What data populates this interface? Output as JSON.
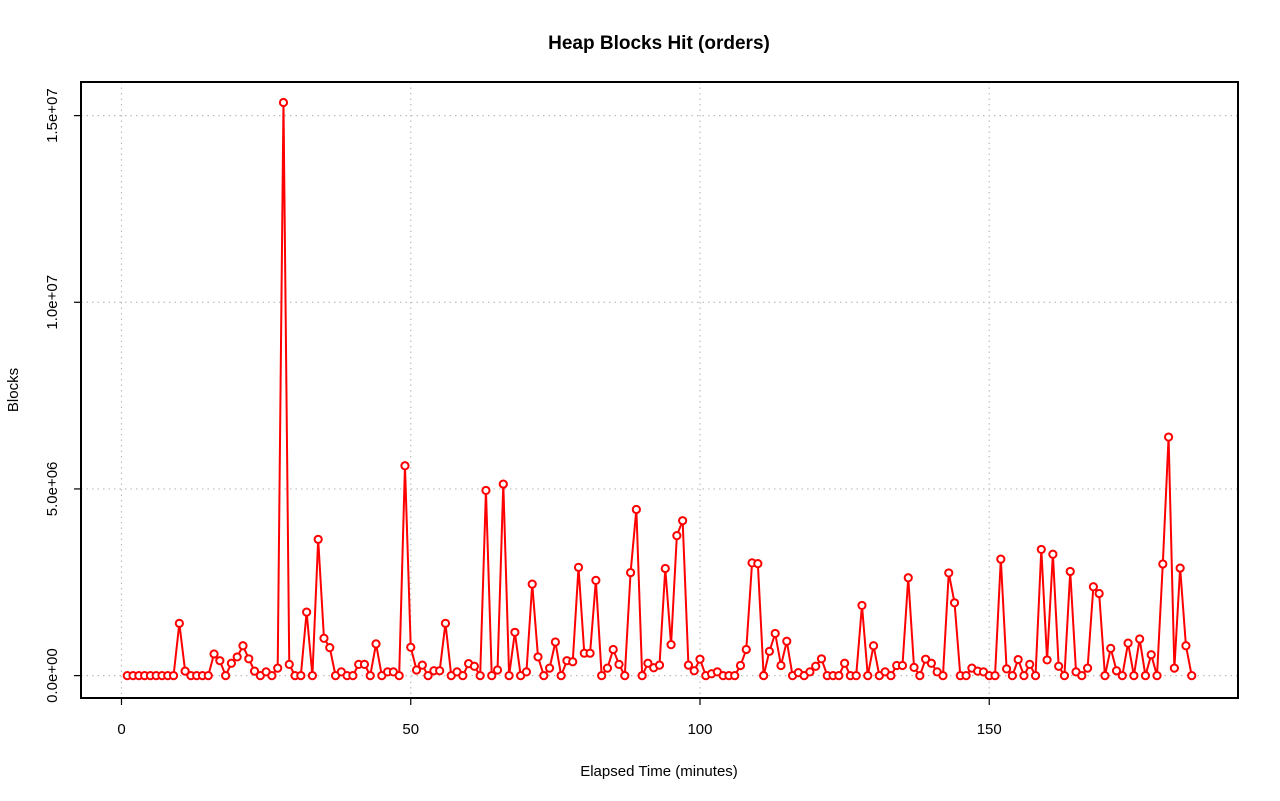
{
  "chart_data": {
    "type": "line",
    "title": "Heap Blocks Hit (orders)",
    "xlabel": "Elapsed Time (minutes)",
    "ylabel": "Blocks",
    "xlim": [
      -7,
      193
    ],
    "ylim": [
      -600000,
      15900000
    ],
    "x_ticks": [
      0,
      50,
      100,
      150
    ],
    "x_tick_labels": [
      "0",
      "50",
      "100",
      "150"
    ],
    "y_ticks": [
      0,
      5000000,
      10000000,
      15000000
    ],
    "y_tick_labels": [
      "0.0e+00",
      "5.0e+06",
      "1.0e+07",
      "1.5e+07"
    ],
    "grid": true,
    "line_color": "#ff0000",
    "marker": "open-circle",
    "series": [
      {
        "x": [
          1,
          2,
          3,
          4,
          5,
          6,
          7,
          8,
          9,
          10,
          11,
          12,
          13,
          14,
          15,
          16,
          17,
          18,
          19,
          20,
          21,
          22,
          23,
          24,
          25,
          26,
          27,
          28,
          29,
          30,
          31,
          32,
          33,
          34,
          35,
          36,
          37,
          38,
          39,
          40,
          41,
          42,
          43,
          44,
          45,
          46,
          47,
          48,
          49,
          50,
          51,
          52,
          53,
          54,
          55,
          56,
          57,
          58,
          59,
          60,
          61,
          62,
          63,
          64,
          65,
          66,
          67,
          68,
          69,
          70,
          71,
          72,
          73,
          74,
          75,
          76,
          77,
          78,
          79,
          80,
          81,
          82,
          83,
          84,
          85,
          86,
          87,
          88,
          89,
          90,
          91,
          92,
          93,
          94,
          95,
          96,
          97,
          98,
          99,
          100,
          101,
          102,
          103,
          104,
          105,
          106,
          107,
          108,
          109,
          110,
          111,
          112,
          113,
          114,
          115,
          116,
          117,
          118,
          119,
          120,
          121,
          122,
          123,
          124,
          125,
          126,
          127,
          128,
          129,
          130,
          131,
          132,
          133,
          134,
          135,
          136,
          137,
          138,
          139,
          140,
          141,
          142,
          143,
          144,
          145,
          146,
          147,
          148,
          149,
          150,
          151,
          152,
          153,
          154,
          155,
          156,
          157,
          158,
          159,
          160,
          161,
          162,
          163,
          164,
          165,
          166,
          167,
          168,
          169,
          170,
          171,
          172,
          173,
          174,
          175,
          176,
          177,
          178,
          179,
          180,
          181,
          182,
          183,
          184,
          185
        ],
        "values": [
          0,
          0,
          0,
          0,
          0,
          0,
          0,
          0,
          0,
          1400000,
          120000,
          0,
          0,
          0,
          0,
          580000,
          400000,
          0,
          330000,
          500000,
          800000,
          450000,
          120000,
          0,
          100000,
          0,
          200000,
          15350000,
          300000,
          0,
          0,
          1700000,
          0,
          3650000,
          1000000,
          750000,
          0,
          100000,
          0,
          0,
          300000,
          300000,
          0,
          850000,
          0,
          100000,
          100000,
          0,
          5620000,
          760000,
          150000,
          280000,
          0,
          130000,
          130000,
          1400000,
          0,
          100000,
          0,
          320000,
          250000,
          0,
          4960000,
          0,
          150000,
          5130000,
          0,
          1160000,
          0,
          100000,
          2450000,
          500000,
          0,
          200000,
          900000,
          0,
          400000,
          370000,
          2900000,
          600000,
          600000,
          2550000,
          0,
          200000,
          700000,
          300000,
          0,
          2760000,
          4450000,
          0,
          330000,
          210000,
          280000,
          2870000,
          830000,
          3750000,
          4150000,
          280000,
          130000,
          440000,
          0,
          50000,
          100000,
          0,
          0,
          0,
          270000,
          700000,
          3020000,
          3000000,
          0,
          650000,
          1130000,
          270000,
          920000,
          0,
          80000,
          0,
          100000,
          250000,
          450000,
          0,
          0,
          0,
          330000,
          0,
          0,
          1880000,
          0,
          800000,
          0,
          100000,
          0,
          270000,
          270000,
          2620000,
          220000,
          0,
          440000,
          330000,
          100000,
          0,
          2750000,
          1950000,
          0,
          0,
          200000,
          120000,
          100000,
          0,
          0,
          3120000,
          180000,
          0,
          430000,
          0,
          300000,
          0,
          3380000,
          420000,
          3250000,
          250000,
          0,
          2790000,
          100000,
          0,
          200000,
          2380000,
          2200000,
          0,
          730000,
          130000,
          0,
          870000,
          0,
          980000,
          0,
          560000,
          0,
          2990000,
          6390000,
          200000,
          2880000,
          800000,
          0
        ]
      }
    ]
  }
}
